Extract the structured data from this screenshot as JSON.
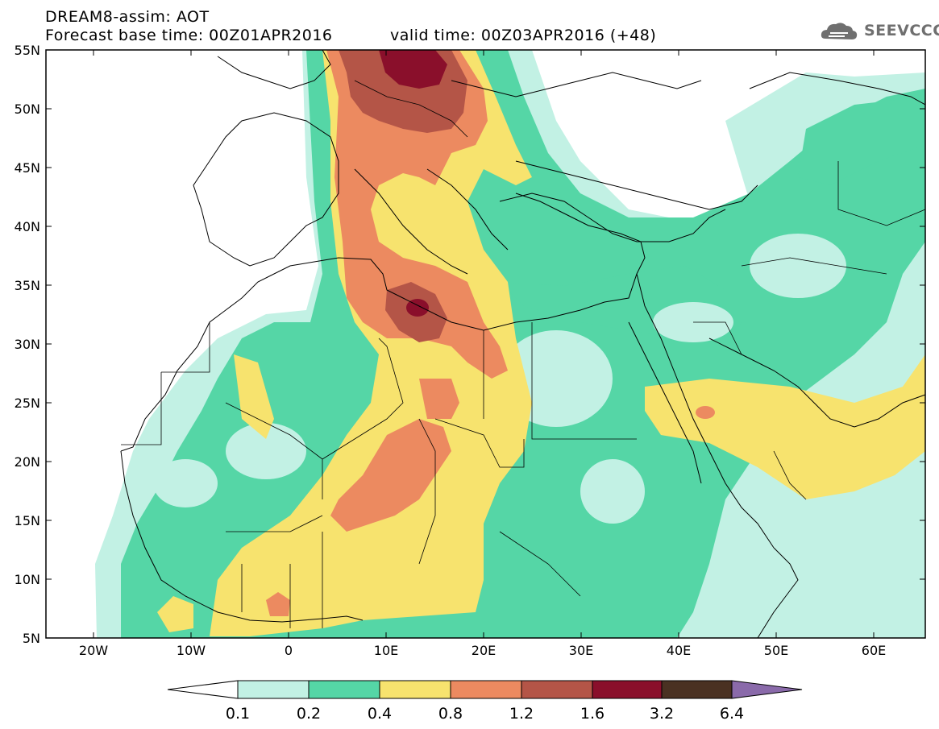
{
  "header": {
    "title": "DREAM8-assim: AOT",
    "base_time": "Forecast base time: 00Z01APR2016",
    "valid_time": "valid time: 00Z03APR2016 (+48)",
    "logo": "SEEVCCC"
  },
  "map": {
    "lat_labels": [
      "55N",
      "50N",
      "45N",
      "40N",
      "35N",
      "30N",
      "25N",
      "20N",
      "15N",
      "10N",
      "5N"
    ],
    "lon_labels": [
      "20W",
      "10W",
      "0",
      "10E",
      "20E",
      "30E",
      "40E",
      "50E",
      "60E"
    ]
  },
  "legend": {
    "values": [
      "0.1",
      "0.2",
      "0.4",
      "0.8",
      "1.2",
      "1.6",
      "3.2",
      "6.4"
    ],
    "colors": [
      "#c2f1e4",
      "#55d6a6",
      "#f7e36e",
      "#ec8a60",
      "#b45547",
      "#8a0f2b",
      "#4a3122",
      "#8a6aaa"
    ]
  },
  "colors": {
    "c01": "#c2f1e4",
    "c02": "#55d6a6",
    "c04": "#f7e36e",
    "c08": "#ec8a60",
    "c12": "#b45547",
    "c16": "#8a0f2b"
  }
}
